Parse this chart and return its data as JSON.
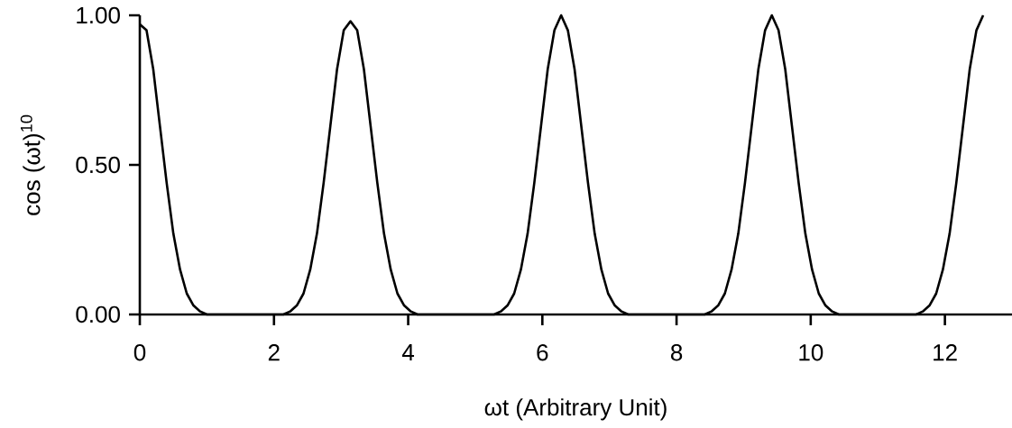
{
  "chart_data": {
    "type": "line",
    "xlabel": "ωt (Arbitrary Unit)",
    "ylabel": "cos (ωt)$^{10}$",
    "x": [
      0,
      0.1,
      0.2,
      0.3,
      0.4,
      0.5,
      0.6,
      0.7,
      0.8,
      0.9,
      1.0,
      1.57,
      2.14,
      2.24,
      2.34,
      2.44,
      2.54,
      2.64,
      2.74,
      2.84,
      2.94,
      3.04,
      3.14,
      3.24,
      3.34,
      3.44,
      3.54,
      3.64,
      3.74,
      3.84,
      3.94,
      4.04,
      4.14,
      4.71,
      5.28,
      5.38,
      5.48,
      5.58,
      5.68,
      5.78,
      5.88,
      5.98,
      6.08,
      6.18,
      6.28,
      6.38,
      6.48,
      6.58,
      6.68,
      6.78,
      6.88,
      6.98,
      7.08,
      7.18,
      7.28,
      7.85,
      8.42,
      8.52,
      8.62,
      8.72,
      8.82,
      8.92,
      9.02,
      9.12,
      9.22,
      9.32,
      9.42,
      9.52,
      9.62,
      9.72,
      9.82,
      9.92,
      10.02,
      10.12,
      10.22,
      10.32,
      10.42,
      10.99,
      11.57,
      11.67,
      11.77,
      11.87,
      11.97,
      12.07,
      12.17,
      12.27,
      12.37,
      12.47,
      12.57
    ],
    "series": [
      {
        "color": "#000000",
        "values": [
          0.97,
          0.95,
          0.82,
          0.63,
          0.44,
          0.27,
          0.15,
          0.07,
          0.03,
          0.01,
          0.0,
          0.0,
          0.0,
          0.01,
          0.03,
          0.07,
          0.15,
          0.27,
          0.44,
          0.63,
          0.82,
          0.95,
          0.98,
          0.95,
          0.82,
          0.63,
          0.44,
          0.27,
          0.15,
          0.07,
          0.03,
          0.01,
          0.0,
          0.0,
          0.0,
          0.01,
          0.03,
          0.07,
          0.15,
          0.27,
          0.44,
          0.63,
          0.82,
          0.95,
          1.0,
          0.95,
          0.82,
          0.63,
          0.44,
          0.27,
          0.15,
          0.07,
          0.03,
          0.01,
          0.0,
          0.0,
          0.0,
          0.01,
          0.03,
          0.07,
          0.15,
          0.27,
          0.44,
          0.63,
          0.82,
          0.95,
          1.0,
          0.95,
          0.82,
          0.63,
          0.44,
          0.27,
          0.15,
          0.07,
          0.03,
          0.01,
          0.0,
          0.0,
          0.0,
          0.01,
          0.03,
          0.07,
          0.15,
          0.27,
          0.44,
          0.63,
          0.82,
          0.95,
          1.0
        ]
      }
    ],
    "xlim": [
      0,
      13
    ],
    "ylim": [
      0,
      1
    ],
    "xticks": [
      0,
      2,
      4,
      6,
      8,
      10,
      12
    ],
    "yticks": [
      {
        "value": 0,
        "label": "0.00"
      },
      {
        "value": 0.5,
        "label": "0.50"
      },
      {
        "value": 1,
        "label": "1.00"
      }
    ],
    "marker": "none",
    "line_style": "solid"
  }
}
